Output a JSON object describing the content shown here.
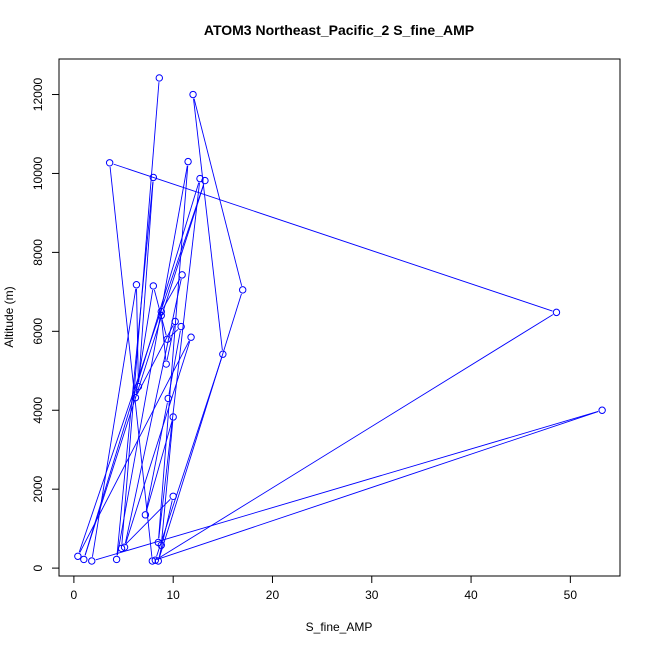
{
  "chart_data": {
    "type": "line",
    "title": "ATOM3 Northeast_Pacific_2 S_fine_AMP",
    "xlabel": "S_fine_AMP",
    "ylabel": "Altitude (m)",
    "xlim": [
      -1.5,
      55
    ],
    "ylim": [
      -200,
      12900
    ],
    "xticks": [
      0,
      10,
      20,
      30,
      40,
      50
    ],
    "yticks": [
      0,
      2000,
      4000,
      6000,
      8000,
      10000,
      12000
    ],
    "series_color": "#0000ff",
    "grid": false,
    "legend": "none",
    "points": [
      {
        "x": 8.6,
        "y": 12420
      },
      {
        "x": 4.8,
        "y": 500
      },
      {
        "x": 10.0,
        "y": 1820
      },
      {
        "x": 8.5,
        "y": 180
      },
      {
        "x": 17.0,
        "y": 7050
      },
      {
        "x": 12.0,
        "y": 12000
      },
      {
        "x": 15.0,
        "y": 5420
      },
      {
        "x": 8.2,
        "y": 200
      },
      {
        "x": 48.6,
        "y": 6480
      },
      {
        "x": 3.6,
        "y": 10270
      },
      {
        "x": 7.9,
        "y": 180
      },
      {
        "x": 53.2,
        "y": 4000
      },
      {
        "x": 1.8,
        "y": 180
      },
      {
        "x": 6.3,
        "y": 7180
      },
      {
        "x": 6.5,
        "y": 4600
      },
      {
        "x": 8.0,
        "y": 9900
      },
      {
        "x": 4.3,
        "y": 220
      },
      {
        "x": 11.5,
        "y": 10300
      },
      {
        "x": 8.5,
        "y": 650
      },
      {
        "x": 12.7,
        "y": 9870
      },
      {
        "x": 1.0,
        "y": 220
      },
      {
        "x": 13.2,
        "y": 9820
      },
      {
        "x": 0.4,
        "y": 300
      },
      {
        "x": 11.8,
        "y": 5850
      },
      {
        "x": 5.1,
        "y": 530
      },
      {
        "x": 10.9,
        "y": 7430
      },
      {
        "x": 8.8,
        "y": 6500
      },
      {
        "x": 8.8,
        "y": 6400
      },
      {
        "x": 9.3,
        "y": 5170
      },
      {
        "x": 10.2,
        "y": 6250
      },
      {
        "x": 6.2,
        "y": 4320
      },
      {
        "x": 8.0,
        "y": 7150
      },
      {
        "x": 9.4,
        "y": 5800
      },
      {
        "x": 10.8,
        "y": 6120
      },
      {
        "x": 9.5,
        "y": 4300
      },
      {
        "x": 7.2,
        "y": 1350
      },
      {
        "x": 10.0,
        "y": 3830
      },
      {
        "x": 8.8,
        "y": 580
      }
    ]
  }
}
